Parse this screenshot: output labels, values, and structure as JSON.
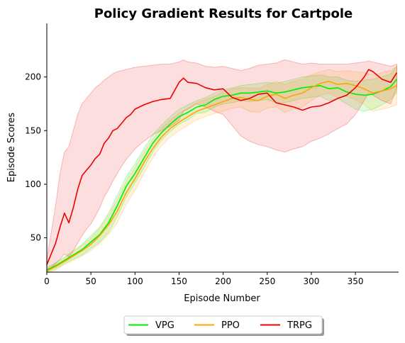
{
  "chart_data": {
    "type": "line",
    "title": "Policy Gradient Results for Cartpole",
    "xlabel": "Episode Number",
    "ylabel": "Episode Scores",
    "xlim": [
      0,
      399
    ],
    "ylim": [
      18,
      250
    ],
    "xticks": [
      0,
      50,
      100,
      150,
      200,
      250,
      300,
      350
    ],
    "yticks": [
      50,
      100,
      150,
      200
    ],
    "legend_position": "bottom-center",
    "grid": false,
    "series": [
      {
        "name": "VPG",
        "color": "#00ee00",
        "x": [
          0,
          10,
          20,
          30,
          40,
          50,
          60,
          70,
          80,
          90,
          100,
          110,
          120,
          130,
          140,
          150,
          160,
          170,
          180,
          190,
          200,
          210,
          220,
          230,
          240,
          250,
          260,
          270,
          280,
          290,
          300,
          310,
          320,
          330,
          340,
          350,
          360,
          370,
          380,
          390,
          397
        ],
        "values": [
          20,
          24,
          29,
          34,
          39,
          46,
          53,
          64,
          80,
          98,
          110,
          124,
          138,
          148,
          156,
          163,
          167,
          172,
          174,
          179,
          182,
          183,
          185,
          185,
          186,
          187,
          185,
          186,
          188,
          190,
          191,
          192,
          189,
          190,
          186,
          184,
          183,
          184,
          187,
          191,
          198
        ],
        "upper": [
          22,
          27,
          32,
          38,
          44,
          52,
          60,
          73,
          90,
          107,
          119,
          133,
          146,
          155,
          163,
          170,
          174,
          178,
          181,
          185,
          188,
          190,
          192,
          193,
          194,
          195,
          194,
          196,
          198,
          200,
          201,
          202,
          200,
          200,
          197,
          196,
          197,
          198,
          200,
          203,
          210
        ],
        "lower": [
          18,
          21,
          26,
          30,
          34,
          40,
          46,
          55,
          70,
          88,
          101,
          115,
          130,
          141,
          149,
          156,
          160,
          166,
          167,
          172,
          175,
          176,
          178,
          177,
          178,
          179,
          176,
          176,
          178,
          180,
          181,
          182,
          178,
          180,
          175,
          170,
          168,
          170,
          174,
          179,
          185
        ]
      },
      {
        "name": "PPO",
        "color": "#ffa500",
        "x": [
          0,
          10,
          20,
          30,
          40,
          50,
          60,
          70,
          80,
          90,
          100,
          110,
          120,
          130,
          140,
          150,
          160,
          170,
          180,
          190,
          200,
          210,
          220,
          230,
          240,
          250,
          260,
          270,
          280,
          290,
          300,
          310,
          320,
          330,
          340,
          350,
          360,
          370,
          380,
          390,
          397
        ],
        "values": [
          19,
          23,
          28,
          33,
          38,
          44,
          52,
          62,
          75,
          92,
          105,
          120,
          133,
          144,
          152,
          158,
          163,
          168,
          171,
          174,
          177,
          180,
          181,
          179,
          178,
          182,
          184,
          180,
          183,
          185,
          190,
          194,
          196,
          193,
          194,
          192,
          189,
          185,
          187,
          189,
          192
        ],
        "upper": [
          21,
          26,
          31,
          37,
          43,
          50,
          59,
          71,
          86,
          103,
          116,
          130,
          142,
          152,
          160,
          166,
          171,
          176,
          179,
          182,
          186,
          189,
          190,
          190,
          189,
          193,
          196,
          193,
          196,
          198,
          202,
          205,
          207,
          205,
          206,
          205,
          204,
          202,
          204,
          206,
          210
        ],
        "lower": [
          17,
          20,
          25,
          29,
          33,
          38,
          45,
          53,
          64,
          81,
          94,
          110,
          124,
          136,
          144,
          150,
          155,
          160,
          163,
          166,
          168,
          171,
          172,
          168,
          167,
          171,
          172,
          167,
          170,
          172,
          178,
          183,
          185,
          181,
          182,
          179,
          174,
          168,
          170,
          172,
          174
        ]
      },
      {
        "name": "TRPG",
        "color": "#ee0000",
        "x": [
          0,
          5,
          10,
          15,
          20,
          25,
          30,
          35,
          40,
          45,
          50,
          55,
          60,
          65,
          70,
          75,
          80,
          85,
          90,
          95,
          100,
          110,
          120,
          130,
          140,
          150,
          155,
          160,
          170,
          180,
          190,
          200,
          210,
          220,
          230,
          240,
          250,
          260,
          270,
          280,
          290,
          300,
          310,
          320,
          330,
          340,
          350,
          360,
          365,
          370,
          380,
          390,
          397
        ],
        "values": [
          25,
          35,
          45,
          60,
          73,
          64,
          78,
          95,
          108,
          113,
          118,
          124,
          128,
          138,
          143,
          150,
          152,
          157,
          162,
          165,
          170,
          174,
          177,
          179,
          180,
          195,
          199,
          195,
          194,
          190,
          188,
          189,
          181,
          178,
          180,
          184,
          185,
          176,
          174,
          172,
          169,
          172,
          173,
          176,
          180,
          183,
          190,
          200,
          207,
          205,
          198,
          195,
          204
        ],
        "upper": [
          30,
          55,
          80,
          110,
          130,
          135,
          150,
          165,
          175,
          180,
          185,
          190,
          193,
          197,
          200,
          203,
          205,
          206,
          207,
          208,
          209,
          210,
          211,
          212,
          212,
          214,
          216,
          214,
          213,
          210,
          209,
          210,
          208,
          206,
          208,
          211,
          212,
          213,
          216,
          214,
          212,
          213,
          212,
          212,
          212,
          212,
          213,
          214,
          215,
          214,
          212,
          210,
          212
        ],
        "lower": [
          20,
          22,
          26,
          30,
          35,
          32,
          38,
          45,
          52,
          58,
          63,
          70,
          78,
          88,
          95,
          103,
          110,
          117,
          123,
          128,
          133,
          140,
          146,
          150,
          154,
          160,
          168,
          170,
          175,
          172,
          168,
          165,
          155,
          145,
          140,
          137,
          135,
          132,
          130,
          133,
          135,
          140,
          143,
          147,
          152,
          156,
          165,
          178,
          185,
          183,
          178,
          175,
          190
        ]
      }
    ]
  }
}
